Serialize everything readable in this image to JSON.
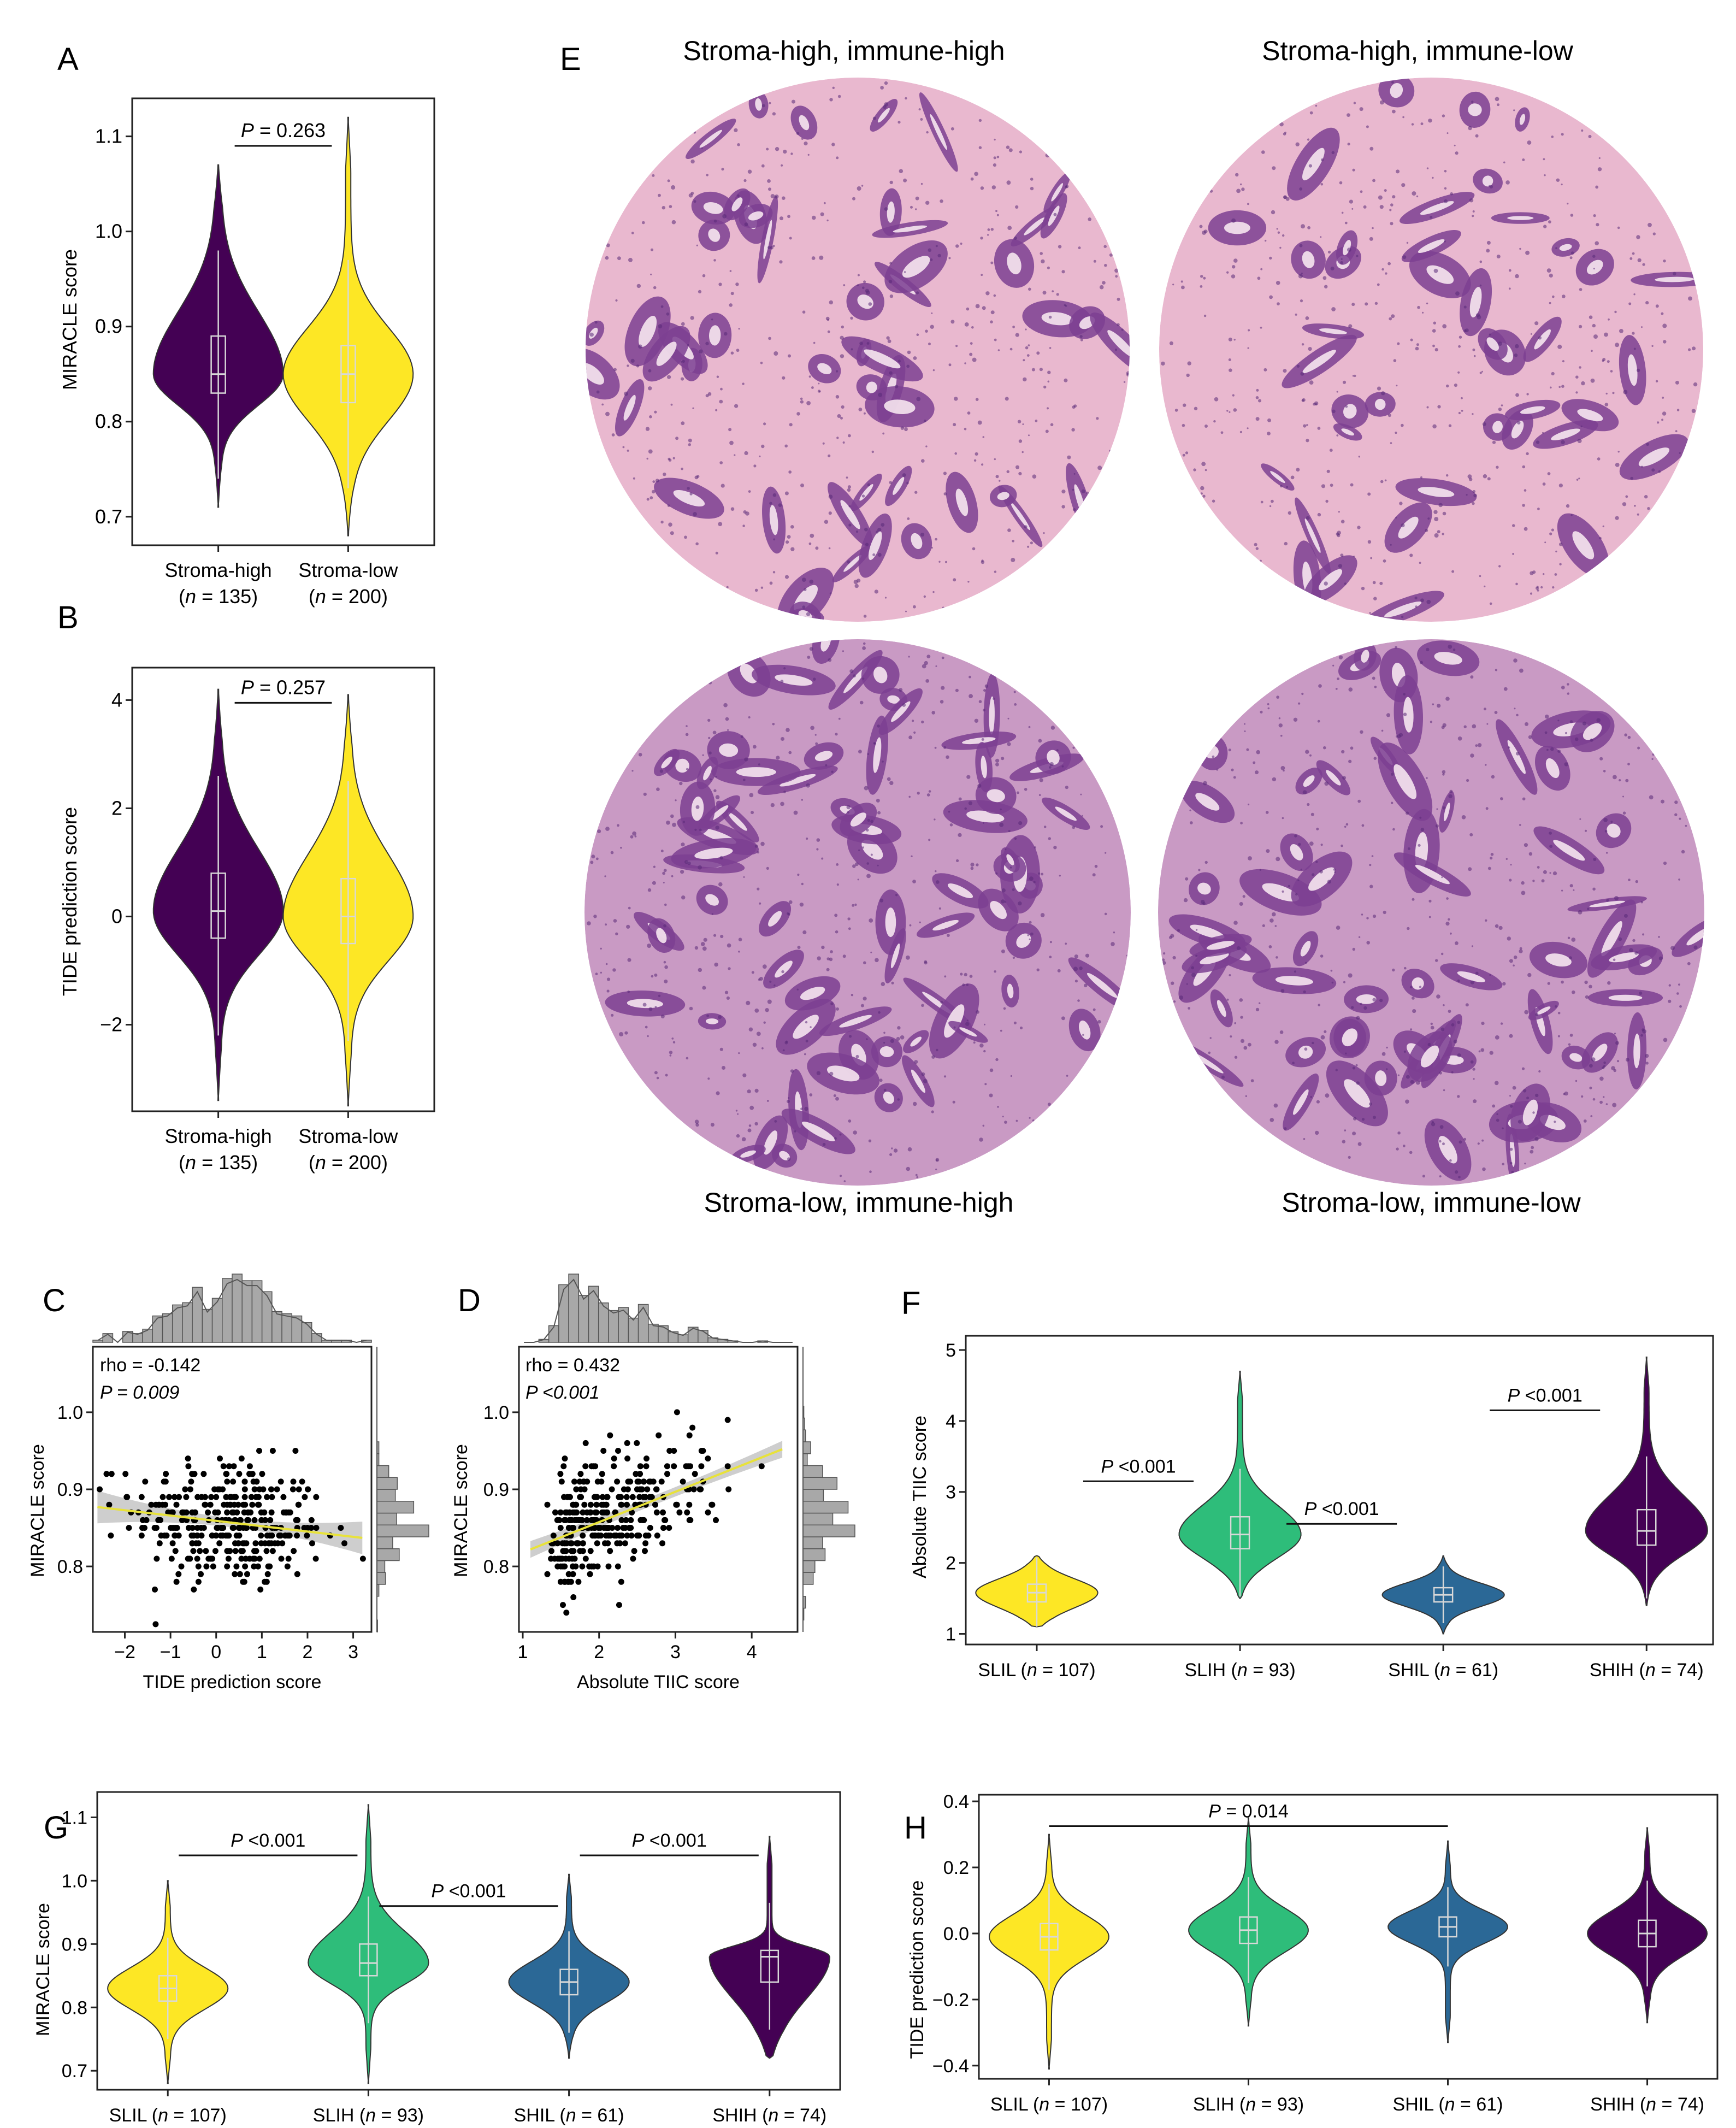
{
  "colors": {
    "SLIL": "#fde725",
    "SLIH": "#2ebd7a",
    "SHIL": "#2b6896",
    "SHIH": "#440154",
    "stroma_high": "#440154",
    "stroma_low": "#fde725",
    "fit_line": "#e8e23a",
    "hist": "#a8a8a8",
    "he_pink": "#e8b9d2",
    "he_purple": "#7a3d8f"
  },
  "panels": {
    "A": {
      "label": "A",
      "ylabel": "MIRACLE score",
      "pvalue": "P = 0.263"
    },
    "B": {
      "label": "B",
      "ylabel": "TIDE prediction score",
      "pvalue": "P = 0.257"
    },
    "C": {
      "label": "C",
      "ylabel": "MIRACLE score",
      "xlabel": "TIDE prediction score",
      "rho": "rho = -0.142",
      "pvalue": "P = 0.009"
    },
    "D": {
      "label": "D",
      "ylabel": "MIRACLE score",
      "xlabel": "Absolute TIIC score",
      "rho": "rho = 0.432",
      "pvalue": "P <0.001"
    },
    "E": {
      "label": "E",
      "titles": [
        "Stroma-high, immune-high",
        "Stroma-high, immune-low",
        "Stroma-low, immune-high",
        "Stroma-low, immune-low"
      ]
    },
    "F": {
      "label": "F",
      "ylabel": "Absolute TIIC score",
      "pvalues": [
        "P <0.001",
        "P <0.001",
        "P <0.001"
      ]
    },
    "G": {
      "label": "G",
      "ylabel": "MIRACLE score",
      "pvalues": [
        "P <0.001",
        "P <0.001",
        "P <0.001"
      ]
    },
    "H": {
      "label": "H",
      "ylabel": "TIDE prediction score",
      "pvalues": [
        "P = 0.014"
      ]
    }
  },
  "chart_data": [
    {
      "type": "violin",
      "panel": "A",
      "categories": [
        "Stroma-high",
        "Stroma-low"
      ],
      "category_n": [
        "(n = 135)",
        "(n = 200)"
      ],
      "ylabel": "MIRACLE score",
      "ylim": [
        0.67,
        1.14
      ],
      "yticks": [
        "0.7",
        "0.8",
        "0.9",
        "1.0",
        "1.1"
      ],
      "series": [
        {
          "group": "Stroma-high",
          "min": 0.71,
          "q1": 0.83,
          "median": 0.85,
          "q3": 0.89,
          "max": 1.07,
          "color": "stroma_high"
        },
        {
          "group": "Stroma-low",
          "min": 0.68,
          "q1": 0.82,
          "median": 0.85,
          "q3": 0.88,
          "max": 1.12,
          "color": "stroma_low"
        }
      ],
      "comparisons": [
        {
          "from": 0,
          "to": 1,
          "y": 1.09,
          "label": "P = 0.263"
        }
      ]
    },
    {
      "type": "violin",
      "panel": "B",
      "categories": [
        "Stroma-high",
        "Stroma-low"
      ],
      "category_n": [
        "(n = 135)",
        "(n = 200)"
      ],
      "ylabel": "TIDE prediction score",
      "ylim": [
        -3.6,
        4.6
      ],
      "yticks": [
        "−2",
        "0",
        "2",
        "4"
      ],
      "series": [
        {
          "group": "Stroma-high",
          "min": -3.4,
          "q1": -0.4,
          "median": 0.1,
          "q3": 0.8,
          "max": 4.2,
          "color": "stroma_high"
        },
        {
          "group": "Stroma-low",
          "min": -3.5,
          "q1": -0.5,
          "median": 0.0,
          "q3": 0.7,
          "max": 4.1,
          "color": "stroma_low"
        }
      ],
      "comparisons": [
        {
          "from": 0,
          "to": 1,
          "y": 3.95,
          "label": "P = 0.257"
        }
      ]
    },
    {
      "type": "scatter",
      "panel": "C",
      "xlabel": "TIDE prediction score",
      "ylabel": "MIRACLE score",
      "xlim": [
        -2.7,
        3.4
      ],
      "ylim": [
        0.715,
        1.085
      ],
      "xticks": [
        "−2",
        "−1",
        "0",
        "1",
        "2",
        "3"
      ],
      "yticks": [
        "0.8",
        "0.9",
        "1.0"
      ],
      "fit": {
        "x": [
          -2.6,
          3.2
        ],
        "y": [
          0.877,
          0.837
        ]
      },
      "n_points": 335,
      "rho": -0.142
    },
    {
      "type": "scatter",
      "panel": "D",
      "xlabel": "Absolute TIIC score",
      "ylabel": "MIRACLE score",
      "xlim": [
        0.95,
        4.6
      ],
      "ylim": [
        0.715,
        1.085
      ],
      "xticks": [
        "1",
        "2",
        "3",
        "4"
      ],
      "yticks": [
        "0.8",
        "0.9",
        "1.0"
      ],
      "fit": {
        "x": [
          1.1,
          4.4
        ],
        "y": [
          0.822,
          0.952
        ]
      },
      "n_points": 335,
      "rho": 0.432
    },
    {
      "type": "violin",
      "panel": "F",
      "categories": [
        "SLIL",
        "SLIH",
        "SHIL",
        "SHIH"
      ],
      "category_n": [
        "(n = 107)",
        "(n = 93)",
        "(n = 61)",
        "(n = 74)"
      ],
      "ylabel": "Absolute TIIC score",
      "ylim": [
        0.85,
        5.2
      ],
      "yticks": [
        "1",
        "2",
        "3",
        "4",
        "5"
      ],
      "series": [
        {
          "group": "SLIL",
          "min": 1.1,
          "q1": 1.45,
          "median": 1.58,
          "q3": 1.7,
          "max": 2.1,
          "color": "SLIL"
        },
        {
          "group": "SLIH",
          "min": 1.5,
          "q1": 2.2,
          "median": 2.4,
          "q3": 2.65,
          "max": 4.7,
          "color": "SLIH"
        },
        {
          "group": "SHIL",
          "min": 1.0,
          "q1": 1.45,
          "median": 1.55,
          "q3": 1.65,
          "max": 2.1,
          "color": "SHIL"
        },
        {
          "group": "SHIH",
          "min": 1.4,
          "q1": 2.25,
          "median": 2.45,
          "q3": 2.75,
          "max": 4.9,
          "color": "SHIH"
        }
      ],
      "comparisons": [
        {
          "from": 0,
          "to": 1,
          "y": 3.15,
          "label": "P <0.001"
        },
        {
          "from": 1,
          "to": 2,
          "y": 2.55,
          "label": "P <0.001"
        },
        {
          "from": 2,
          "to": 3,
          "y": 4.15,
          "label": "P <0.001"
        }
      ]
    },
    {
      "type": "violin",
      "panel": "G",
      "categories": [
        "SLIL",
        "SLIH",
        "SHIL",
        "SHIH"
      ],
      "category_n": [
        "(n = 107)",
        "(n = 93)",
        "(n = 61)",
        "(n = 74)"
      ],
      "ylabel": "MIRACLE score",
      "ylim": [
        0.67,
        1.14
      ],
      "yticks": [
        "0.7",
        "0.8",
        "0.9",
        "1.0",
        "1.1"
      ],
      "series": [
        {
          "group": "SLIL",
          "min": 0.68,
          "q1": 0.81,
          "median": 0.83,
          "q3": 0.85,
          "max": 1.0,
          "color": "SLIL"
        },
        {
          "group": "SLIH",
          "min": 0.68,
          "q1": 0.85,
          "median": 0.87,
          "q3": 0.9,
          "max": 1.12,
          "color": "SLIH"
        },
        {
          "group": "SHIL",
          "min": 0.72,
          "q1": 0.82,
          "median": 0.84,
          "q3": 0.86,
          "max": 1.01,
          "color": "SHIL"
        },
        {
          "group": "SHIH",
          "min": 0.72,
          "q1": 0.84,
          "median": 0.88,
          "q3": 0.89,
          "max": 1.07,
          "color": "SHIH"
        }
      ],
      "comparisons": [
        {
          "from": 0,
          "to": 1,
          "y": 1.04,
          "label": "P <0.001"
        },
        {
          "from": 1,
          "to": 2,
          "y": 0.96,
          "label": "P <0.001"
        },
        {
          "from": 2,
          "to": 3,
          "y": 1.04,
          "label": "P <0.001"
        }
      ]
    },
    {
      "type": "violin",
      "panel": "H",
      "categories": [
        "SLIL",
        "SLIH",
        "SHIL",
        "SHIH"
      ],
      "category_n": [
        "(n = 107)",
        "(n = 93)",
        "(n = 61)",
        "(n = 74)"
      ],
      "ylabel": "TIDE prediction score",
      "ylim": [
        -0.44,
        0.42
      ],
      "yticks": [
        "−0.4",
        "−0.2",
        "0.0",
        "0.2",
        "0.4"
      ],
      "series": [
        {
          "group": "SLIL",
          "min": -0.41,
          "q1": -0.05,
          "median": -0.01,
          "q3": 0.03,
          "max": 0.3,
          "color": "SLIL"
        },
        {
          "group": "SLIH",
          "min": -0.28,
          "q1": -0.03,
          "median": 0.01,
          "q3": 0.05,
          "max": 0.35,
          "color": "SLIH"
        },
        {
          "group": "SHIL",
          "min": -0.33,
          "q1": -0.01,
          "median": 0.02,
          "q3": 0.05,
          "max": 0.28,
          "color": "SHIL"
        },
        {
          "group": "SHIH",
          "min": -0.27,
          "q1": -0.04,
          "median": 0.0,
          "q3": 0.04,
          "max": 0.32,
          "color": "SHIH"
        }
      ],
      "comparisons": [
        {
          "from": 0,
          "to": 2,
          "y": 0.325,
          "label": "P = 0.014"
        }
      ]
    }
  ]
}
